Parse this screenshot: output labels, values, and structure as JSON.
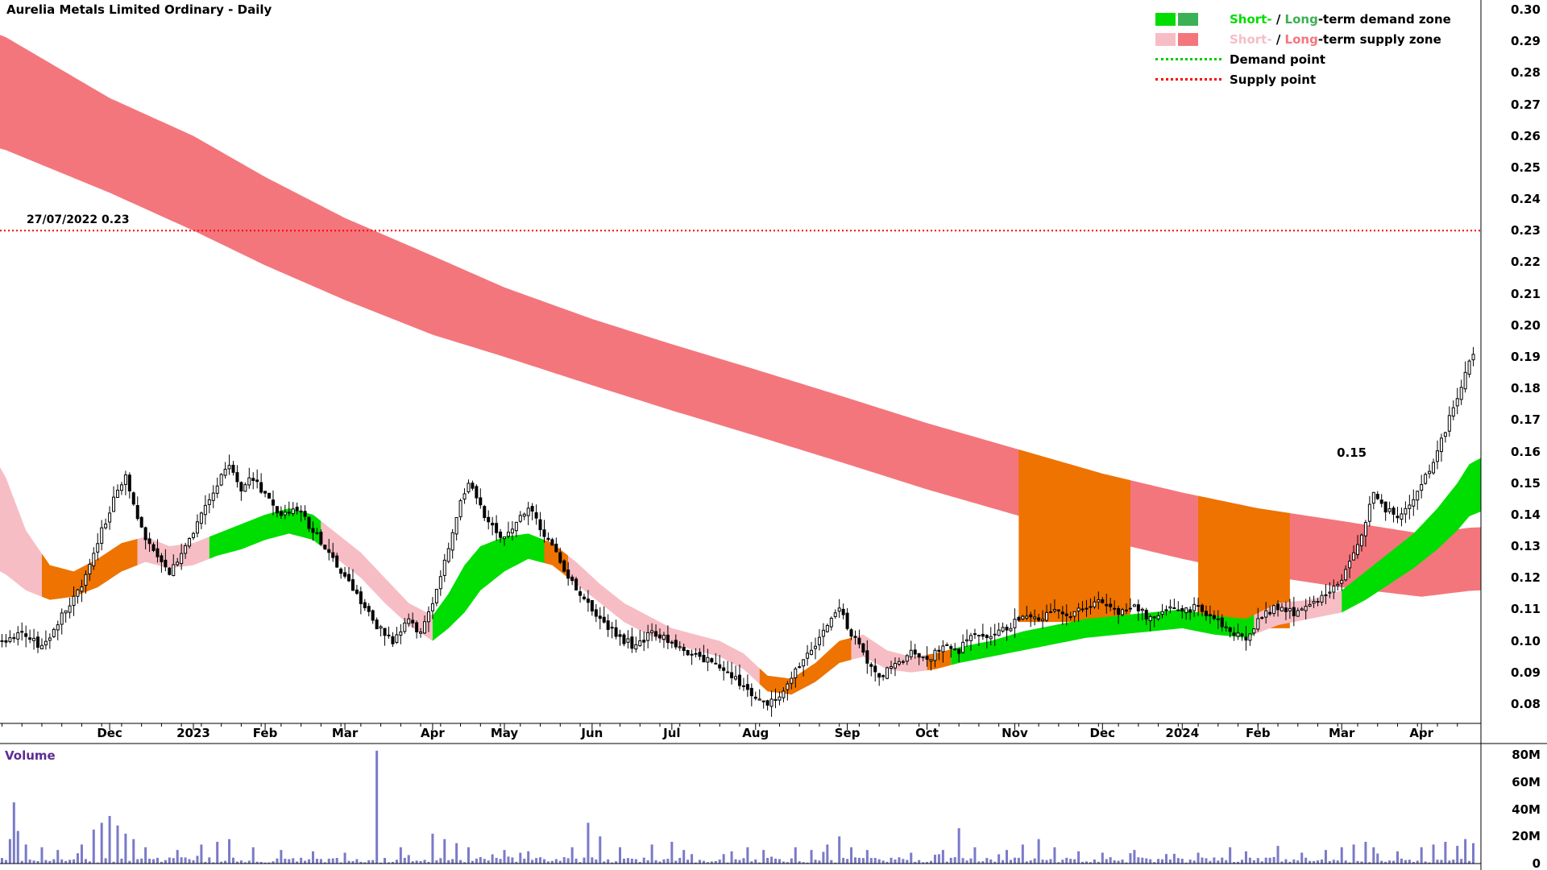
{
  "title": "Aurelia Metals Limited Ordinary - Daily",
  "volume_label": "Volume",
  "legend": {
    "demand": {
      "short": "Short-",
      "sep": " / ",
      "long": "Long",
      "rest": "-term demand zone"
    },
    "supply": {
      "short": "Short-",
      "sep": " / ",
      "long": "Long",
      "rest": "-term supply zone"
    },
    "demand_point": "Demand point",
    "supply_point": "Supply point"
  },
  "supply_line": {
    "label": "27/07/2022 0.23",
    "price": 0.23
  },
  "annotation": {
    "text": "0.15",
    "day": 338,
    "price": 0.157
  },
  "colors": {
    "demand_short": "#00dd00",
    "demand_long": "#3cb054",
    "supply_short": "#f7bdc5",
    "supply_long": "#f4767d",
    "overlap": "#ee7300",
    "demand_point": "#00cc00",
    "supply_point": "#ff0000",
    "volume_bar": "#7a7ac9",
    "volume_text": "#5c2d91"
  },
  "axes": {
    "price_ticks": [
      "0.30",
      "0.29",
      "0.28",
      "0.27",
      "0.26",
      "0.25",
      "0.24",
      "0.23",
      "0.22",
      "0.21",
      "0.20",
      "0.19",
      "0.18",
      "0.17",
      "0.16",
      "0.15",
      "0.14",
      "0.13",
      "0.12",
      "0.11",
      "0.10",
      "0.09",
      "0.08"
    ],
    "date_ticks": [
      {
        "label": "Dec",
        "day": 27
      },
      {
        "label": "2023",
        "day": 48
      },
      {
        "label": "Feb",
        "day": 66
      },
      {
        "label": "Mar",
        "day": 86
      },
      {
        "label": "Apr",
        "day": 108
      },
      {
        "label": "May",
        "day": 126
      },
      {
        "label": "Jun",
        "day": 148
      },
      {
        "label": "Jul",
        "day": 168
      },
      {
        "label": "Aug",
        "day": 189
      },
      {
        "label": "Sep",
        "day": 212
      },
      {
        "label": "Oct",
        "day": 232
      },
      {
        "label": "Nov",
        "day": 254
      },
      {
        "label": "Dec",
        "day": 276
      },
      {
        "label": "2024",
        "day": 296
      },
      {
        "label": "Feb",
        "day": 315
      },
      {
        "label": "Mar",
        "day": 336
      },
      {
        "label": "Apr",
        "day": 356
      }
    ],
    "volume_ticks": [
      {
        "label": "80M",
        "value": 80
      },
      {
        "label": "60M",
        "value": 60
      },
      {
        "label": "40M",
        "value": 40
      },
      {
        "label": "20M",
        "value": 20
      },
      {
        "label": "0",
        "value": 0
      }
    ]
  },
  "chart_data": {
    "type": "candlestick+volume",
    "title": "Aurelia Metals Limited Ordinary - Daily",
    "n_days": 370,
    "price_axis_range": [
      0.08,
      0.3
    ],
    "volume_axis_max_millions": 80,
    "price_anchors": [
      [
        0,
        0.1
      ],
      [
        5,
        0.103
      ],
      [
        10,
        0.098
      ],
      [
        15,
        0.108
      ],
      [
        20,
        0.118
      ],
      [
        25,
        0.135
      ],
      [
        29,
        0.148
      ],
      [
        31,
        0.153
      ],
      [
        34,
        0.138
      ],
      [
        38,
        0.128
      ],
      [
        42,
        0.122
      ],
      [
        46,
        0.13
      ],
      [
        50,
        0.14
      ],
      [
        54,
        0.15
      ],
      [
        57,
        0.155
      ],
      [
        60,
        0.148
      ],
      [
        63,
        0.152
      ],
      [
        66,
        0.146
      ],
      [
        70,
        0.14
      ],
      [
        74,
        0.142
      ],
      [
        78,
        0.135
      ],
      [
        82,
        0.128
      ],
      [
        86,
        0.12
      ],
      [
        90,
        0.112
      ],
      [
        94,
        0.105
      ],
      [
        98,
        0.1
      ],
      [
        102,
        0.108
      ],
      [
        105,
        0.102
      ],
      [
        108,
        0.112
      ],
      [
        111,
        0.125
      ],
      [
        114,
        0.14
      ],
      [
        117,
        0.15
      ],
      [
        120,
        0.142
      ],
      [
        123,
        0.136
      ],
      [
        126,
        0.132
      ],
      [
        129,
        0.138
      ],
      [
        132,
        0.142
      ],
      [
        135,
        0.136
      ],
      [
        139,
        0.128
      ],
      [
        143,
        0.118
      ],
      [
        147,
        0.112
      ],
      [
        151,
        0.106
      ],
      [
        155,
        0.101
      ],
      [
        159,
        0.098
      ],
      [
        163,
        0.103
      ],
      [
        167,
        0.1
      ],
      [
        171,
        0.097
      ],
      [
        175,
        0.095
      ],
      [
        179,
        0.093
      ],
      [
        183,
        0.089
      ],
      [
        187,
        0.084
      ],
      [
        191,
        0.08
      ],
      [
        195,
        0.083
      ],
      [
        199,
        0.09
      ],
      [
        203,
        0.098
      ],
      [
        207,
        0.104
      ],
      [
        210,
        0.111
      ],
      [
        213,
        0.102
      ],
      [
        217,
        0.094
      ],
      [
        220,
        0.089
      ],
      [
        224,
        0.092
      ],
      [
        228,
        0.096
      ],
      [
        232,
        0.093
      ],
      [
        236,
        0.099
      ],
      [
        240,
        0.097
      ],
      [
        244,
        0.103
      ],
      [
        248,
        0.101
      ],
      [
        252,
        0.104
      ],
      [
        256,
        0.108
      ],
      [
        260,
        0.106
      ],
      [
        264,
        0.11
      ],
      [
        268,
        0.108
      ],
      [
        272,
        0.111
      ],
      [
        276,
        0.113
      ],
      [
        280,
        0.109
      ],
      [
        284,
        0.111
      ],
      [
        288,
        0.107
      ],
      [
        292,
        0.11
      ],
      [
        296,
        0.109
      ],
      [
        300,
        0.111
      ],
      [
        304,
        0.107
      ],
      [
        308,
        0.103
      ],
      [
        312,
        0.101
      ],
      [
        316,
        0.108
      ],
      [
        320,
        0.111
      ],
      [
        324,
        0.109
      ],
      [
        328,
        0.111
      ],
      [
        332,
        0.114
      ],
      [
        336,
        0.119
      ],
      [
        339,
        0.128
      ],
      [
        342,
        0.138
      ],
      [
        344,
        0.147
      ],
      [
        347,
        0.142
      ],
      [
        350,
        0.139
      ],
      [
        353,
        0.144
      ],
      [
        356,
        0.149
      ],
      [
        359,
        0.157
      ],
      [
        362,
        0.167
      ],
      [
        365,
        0.177
      ],
      [
        367,
        0.184
      ],
      [
        369,
        0.191
      ]
    ],
    "long_supply_band": [
      [
        0,
        0.292,
        0.256
      ],
      [
        27,
        0.272,
        0.242
      ],
      [
        48,
        0.26,
        0.23
      ],
      [
        66,
        0.247,
        0.219
      ],
      [
        86,
        0.234,
        0.208
      ],
      [
        108,
        0.222,
        0.197
      ],
      [
        126,
        0.212,
        0.19
      ],
      [
        148,
        0.202,
        0.181
      ],
      [
        168,
        0.194,
        0.173
      ],
      [
        189,
        0.186,
        0.165
      ],
      [
        212,
        0.177,
        0.156
      ],
      [
        232,
        0.169,
        0.148
      ],
      [
        254,
        0.161,
        0.14
      ],
      [
        276,
        0.153,
        0.132
      ],
      [
        296,
        0.147,
        0.126
      ],
      [
        315,
        0.142,
        0.121
      ],
      [
        336,
        0.138,
        0.117
      ],
      [
        356,
        0.134,
        0.114
      ],
      [
        369,
        0.136,
        0.116
      ]
    ],
    "long_band_overlays": [
      {
        "from": 255,
        "to": 283,
        "bottom": 0.106
      },
      {
        "from": 300,
        "to": 323,
        "bottom": 0.104
      }
    ],
    "short_band": [
      [
        0,
        0.155,
        0.122
      ],
      [
        6,
        0.135,
        0.116
      ],
      [
        12,
        0.124,
        0.113
      ],
      [
        18,
        0.122,
        0.114
      ],
      [
        24,
        0.126,
        0.117
      ],
      [
        30,
        0.131,
        0.122
      ],
      [
        36,
        0.133,
        0.125
      ],
      [
        42,
        0.13,
        0.123
      ],
      [
        48,
        0.131,
        0.124
      ],
      [
        54,
        0.134,
        0.127
      ],
      [
        60,
        0.137,
        0.129
      ],
      [
        66,
        0.14,
        0.132
      ],
      [
        72,
        0.142,
        0.134
      ],
      [
        78,
        0.14,
        0.132
      ],
      [
        84,
        0.134,
        0.126
      ],
      [
        90,
        0.128,
        0.12
      ],
      [
        96,
        0.12,
        0.112
      ],
      [
        102,
        0.112,
        0.105
      ],
      [
        108,
        0.108,
        0.1
      ],
      [
        112,
        0.115,
        0.104
      ],
      [
        116,
        0.124,
        0.109
      ],
      [
        120,
        0.13,
        0.116
      ],
      [
        126,
        0.133,
        0.122
      ],
      [
        132,
        0.134,
        0.126
      ],
      [
        138,
        0.131,
        0.124
      ],
      [
        144,
        0.125,
        0.118
      ],
      [
        150,
        0.118,
        0.112
      ],
      [
        156,
        0.112,
        0.106
      ],
      [
        162,
        0.108,
        0.102
      ],
      [
        168,
        0.104,
        0.099
      ],
      [
        174,
        0.102,
        0.097
      ],
      [
        180,
        0.1,
        0.095
      ],
      [
        186,
        0.096,
        0.091
      ],
      [
        192,
        0.089,
        0.084
      ],
      [
        198,
        0.088,
        0.083
      ],
      [
        204,
        0.093,
        0.087
      ],
      [
        210,
        0.1,
        0.093
      ],
      [
        216,
        0.102,
        0.095
      ],
      [
        222,
        0.097,
        0.091
      ],
      [
        228,
        0.095,
        0.09
      ],
      [
        234,
        0.096,
        0.091
      ],
      [
        240,
        0.098,
        0.093
      ],
      [
        248,
        0.1,
        0.095
      ],
      [
        256,
        0.103,
        0.097
      ],
      [
        264,
        0.105,
        0.099
      ],
      [
        272,
        0.107,
        0.101
      ],
      [
        280,
        0.108,
        0.102
      ],
      [
        288,
        0.109,
        0.103
      ],
      [
        296,
        0.11,
        0.104
      ],
      [
        304,
        0.108,
        0.102
      ],
      [
        312,
        0.107,
        0.101
      ],
      [
        320,
        0.112,
        0.105
      ],
      [
        328,
        0.113,
        0.107
      ],
      [
        336,
        0.116,
        0.109
      ],
      [
        342,
        0.122,
        0.113
      ],
      [
        348,
        0.128,
        0.118
      ],
      [
        354,
        0.134,
        0.123
      ],
      [
        360,
        0.142,
        0.129
      ],
      [
        365,
        0.15,
        0.135
      ],
      [
        369,
        0.158,
        0.141
      ]
    ],
    "short_band_colors": [
      {
        "from": 0,
        "to": 10,
        "color": "supply_short"
      },
      {
        "from": 10,
        "to": 34,
        "color": "overlap"
      },
      {
        "from": 34,
        "to": 52,
        "color": "supply_short"
      },
      {
        "from": 52,
        "to": 80,
        "color": "demand_short"
      },
      {
        "from": 80,
        "to": 108,
        "color": "supply_short"
      },
      {
        "from": 108,
        "to": 136,
        "color": "demand_short"
      },
      {
        "from": 136,
        "to": 142,
        "color": "overlap"
      },
      {
        "from": 142,
        "to": 190,
        "color": "supply_short"
      },
      {
        "from": 190,
        "to": 213,
        "color": "overlap"
      },
      {
        "from": 213,
        "to": 232,
        "color": "supply_short"
      },
      {
        "from": 232,
        "to": 238,
        "color": "overlap"
      },
      {
        "from": 238,
        "to": 314,
        "color": "demand_short"
      },
      {
        "from": 314,
        "to": 336,
        "color": "supply_short"
      },
      {
        "from": 336,
        "to": 369,
        "color": "demand_short"
      }
    ],
    "volume_spikes_millions": [
      [
        2,
        18
      ],
      [
        3,
        45
      ],
      [
        4,
        24
      ],
      [
        6,
        14
      ],
      [
        10,
        12
      ],
      [
        14,
        10
      ],
      [
        20,
        14
      ],
      [
        23,
        25
      ],
      [
        25,
        30
      ],
      [
        27,
        35
      ],
      [
        29,
        28
      ],
      [
        31,
        22
      ],
      [
        33,
        18
      ],
      [
        36,
        12
      ],
      [
        44,
        10
      ],
      [
        50,
        14
      ],
      [
        54,
        16
      ],
      [
        57,
        18
      ],
      [
        63,
        12
      ],
      [
        70,
        10
      ],
      [
        78,
        9
      ],
      [
        86,
        8
      ],
      [
        94,
        83
      ],
      [
        100,
        12
      ],
      [
        108,
        22
      ],
      [
        111,
        18
      ],
      [
        114,
        15
      ],
      [
        117,
        12
      ],
      [
        126,
        10
      ],
      [
        132,
        9
      ],
      [
        143,
        12
      ],
      [
        147,
        30
      ],
      [
        150,
        20
      ],
      [
        155,
        12
      ],
      [
        163,
        14
      ],
      [
        168,
        16
      ],
      [
        171,
        10
      ],
      [
        183,
        9
      ],
      [
        187,
        12
      ],
      [
        191,
        10
      ],
      [
        199,
        12
      ],
      [
        203,
        10
      ],
      [
        207,
        14
      ],
      [
        210,
        20
      ],
      [
        213,
        12
      ],
      [
        217,
        10
      ],
      [
        228,
        8
      ],
      [
        236,
        10
      ],
      [
        240,
        26
      ],
      [
        244,
        12
      ],
      [
        252,
        10
      ],
      [
        256,
        14
      ],
      [
        260,
        18
      ],
      [
        264,
        12
      ],
      [
        270,
        9
      ],
      [
        276,
        8
      ],
      [
        284,
        10
      ],
      [
        292,
        7
      ],
      [
        300,
        8
      ],
      [
        308,
        12
      ],
      [
        312,
        9
      ],
      [
        320,
        13
      ],
      [
        326,
        8
      ],
      [
        332,
        10
      ],
      [
        336,
        12
      ],
      [
        339,
        14
      ],
      [
        342,
        16
      ],
      [
        344,
        12
      ],
      [
        350,
        9
      ],
      [
        356,
        12
      ],
      [
        359,
        14
      ],
      [
        362,
        16
      ],
      [
        365,
        13
      ],
      [
        367,
        18
      ],
      [
        369,
        15
      ]
    ]
  }
}
